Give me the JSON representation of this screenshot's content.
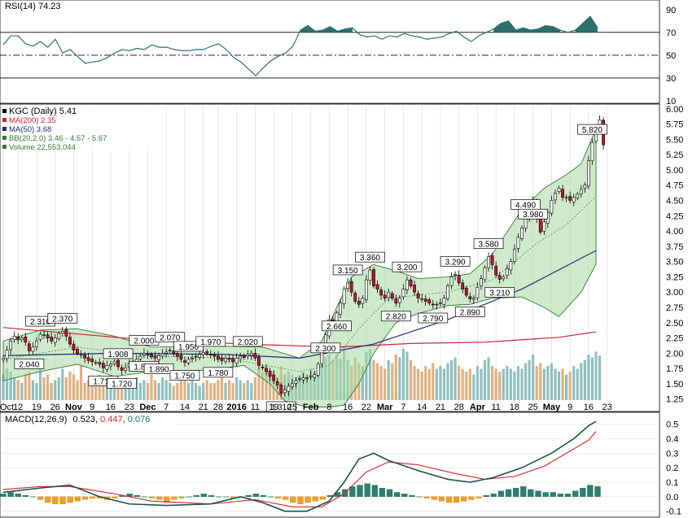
{
  "colors": {
    "up": "#ffffff",
    "down": "#c8102e",
    "candle_edge": "#000000",
    "bb_fill": "#a8d8a0",
    "bb_edge": "#2e7d32",
    "bb_mid": "#4f8a4f",
    "ma200": "#cc2233",
    "ma50": "#1f2d7a",
    "vol_up": "#8fbfbf",
    "vol_down": "#e0b080",
    "rsi_line": "#2e6f6f",
    "rsi_fill": "#2e6f6f",
    "macd": "#1e4f4f",
    "signal": "#d22222",
    "hist": "#2e7f6f",
    "hist_neg": "#f0a020",
    "grid": "#d8d8d8"
  },
  "chart_data": [
    {
      "type": "line",
      "panel": "rsi",
      "title": "RSI(14) 74.23",
      "ylim": [
        10,
        97
      ],
      "y_ticks": [
        90,
        70,
        50,
        30,
        10
      ],
      "levels": [
        70,
        50,
        30
      ],
      "series": [
        {
          "name": "RSI(14)",
          "values": [
            59,
            67,
            67,
            60,
            58,
            62,
            57,
            64,
            52,
            55,
            49,
            43,
            44,
            45,
            48,
            52,
            55,
            54,
            56,
            55,
            59,
            57,
            57,
            55,
            54,
            54,
            55,
            55,
            58,
            60,
            55,
            48,
            44,
            38,
            32,
            39,
            45,
            49,
            52,
            58,
            72,
            76,
            71,
            72,
            75,
            71,
            73,
            74,
            68,
            66,
            67,
            64,
            67,
            66,
            69,
            67,
            66,
            64,
            65,
            66,
            69,
            71,
            66,
            62,
            67,
            70,
            73,
            78,
            80,
            72,
            74,
            72,
            73,
            76,
            75,
            72,
            70,
            72,
            78,
            84,
            74
          ]
        }
      ]
    },
    {
      "type": "candlestick",
      "panel": "price",
      "title": "KGC (Daily) 5.41",
      "ylim": [
        1.1,
        6.05
      ],
      "y_ticks": [
        "6.00",
        "5.75",
        "5.50",
        "5.25",
        "5.00",
        "4.75",
        "4.50",
        "4.25",
        "4.00",
        "3.75",
        "3.50",
        "3.25",
        "3.00",
        "2.75",
        "2.50",
        "2.25",
        "2.00",
        "1.75",
        "1.50",
        "1.25"
      ],
      "x_labels": [
        "Oct",
        "12",
        "19",
        "26",
        "Nov",
        "9",
        "16",
        "23",
        "Dec",
        "7",
        "14",
        "21",
        "28",
        "2016",
        "11",
        "19",
        "25",
        "Feb",
        "8",
        "16",
        "22",
        "Mar",
        "7",
        "14",
        "21",
        "28",
        "Apr",
        "11",
        "18",
        "25",
        "May",
        "9",
        "16",
        "23"
      ],
      "x_label_idx": [
        0,
        4,
        9,
        14,
        19,
        24,
        29,
        34,
        39,
        44,
        49,
        54,
        58,
        63,
        68,
        73,
        78,
        83,
        88,
        93,
        98,
        103,
        108,
        113,
        118,
        123,
        128,
        133,
        138,
        143,
        148,
        153,
        158,
        163
      ],
      "close": [
        1.92,
        2.05,
        2.2,
        2.28,
        2.22,
        2.25,
        2.18,
        2.04,
        2.1,
        2.2,
        2.31,
        2.3,
        2.25,
        2.2,
        2.25,
        2.32,
        2.36,
        2.28,
        2.15,
        2.05,
        2.0,
        1.98,
        1.92,
        1.88,
        1.86,
        1.85,
        1.82,
        1.76,
        1.8,
        1.82,
        1.86,
        1.78,
        1.72,
        1.76,
        1.84,
        1.87,
        1.9,
        1.95,
        2.0,
        1.98,
        1.94,
        1.92,
        1.96,
        1.99,
        2.02,
        2.05,
        2.0,
        1.95,
        1.9,
        1.85,
        1.9,
        1.92,
        1.95,
        1.98,
        2.01,
        2.0,
        1.98,
        1.95,
        1.9,
        1.88,
        1.92,
        1.9,
        1.86,
        1.92,
        1.95,
        1.93,
        1.98,
        2.0,
        1.92,
        1.8,
        1.76,
        1.7,
        1.62,
        1.55,
        1.48,
        1.34,
        1.4,
        1.46,
        1.5,
        1.55,
        1.58,
        1.6,
        1.6,
        1.63,
        1.65,
        1.82,
        2.05,
        2.3,
        2.55,
        2.45,
        2.66,
        2.82,
        3.05,
        3.15,
        3.0,
        2.85,
        2.8,
        2.9,
        3.2,
        3.36,
        3.1,
        3.05,
        2.95,
        2.9,
        3.0,
        2.9,
        2.82,
        2.9,
        3.05,
        3.2,
        3.1,
        3.0,
        2.9,
        2.88,
        2.85,
        2.82,
        2.79,
        2.8,
        2.82,
        2.9,
        3.1,
        3.25,
        3.29,
        3.15,
        3.05,
        2.95,
        2.89,
        2.9,
        3.08,
        3.22,
        3.4,
        3.58,
        3.45,
        3.28,
        3.21,
        3.25,
        3.38,
        3.5,
        3.7,
        3.9,
        4.05,
        4.22,
        4.45,
        4.49,
        4.2,
        3.98,
        4.15,
        4.3,
        4.5,
        4.62,
        4.7,
        4.55,
        4.55,
        4.5,
        4.55,
        4.6,
        4.68,
        4.75,
        5.15,
        5.45,
        5.7,
        5.82,
        5.41
      ],
      "annotations": [
        {
          "label": "2.310",
          "idx": 10,
          "pos": "above"
        },
        {
          "label": "2.040",
          "idx": 7,
          "pos": "below"
        },
        {
          "label": "2.370",
          "idx": 16,
          "pos": "above"
        },
        {
          "label": "1.908",
          "idx": 31,
          "pos": "above"
        },
        {
          "label": "1.710",
          "idx": 27,
          "pos": "below"
        },
        {
          "label": "1.720",
          "idx": 32,
          "pos": "below"
        },
        {
          "label": "2.000",
          "idx": 38,
          "pos": "above"
        },
        {
          "label": "1.870",
          "idx": 38,
          "pos": "below"
        },
        {
          "label": "1.890",
          "idx": 42,
          "pos": "below"
        },
        {
          "label": "2.070",
          "idx": 45,
          "pos": "above"
        },
        {
          "label": "1.950",
          "idx": 50,
          "pos": "above"
        },
        {
          "label": "1.970",
          "idx": 56,
          "pos": "above"
        },
        {
          "label": "1.750",
          "idx": 49,
          "pos": "below"
        },
        {
          "label": "1.780",
          "idx": 58,
          "pos": "below"
        },
        {
          "label": "2.020",
          "idx": 66,
          "pos": "above"
        },
        {
          "label": "1.310",
          "idx": 75,
          "pos": "below"
        },
        {
          "label": "2.300",
          "idx": 87,
          "pos": "below"
        },
        {
          "label": "2.660",
          "idx": 90,
          "pos": "below"
        },
        {
          "label": "3.150",
          "idx": 93,
          "pos": "above"
        },
        {
          "label": "3.360",
          "idx": 99,
          "pos": "above"
        },
        {
          "label": "2.820",
          "idx": 106,
          "pos": "below"
        },
        {
          "label": "3.200",
          "idx": 109,
          "pos": "above"
        },
        {
          "label": "2.790",
          "idx": 116,
          "pos": "below"
        },
        {
          "label": "3.290",
          "idx": 122,
          "pos": "above"
        },
        {
          "label": "2.890",
          "idx": 126,
          "pos": "below"
        },
        {
          "label": "3.580",
          "idx": 131,
          "pos": "above"
        },
        {
          "label": "3.210",
          "idx": 134,
          "pos": "below"
        },
        {
          "label": "4.490",
          "idx": 141,
          "pos": "above"
        },
        {
          "label": "3.980",
          "idx": 143,
          "pos": "below"
        },
        {
          "label": "5.820",
          "idx": 159,
          "pos": "above"
        }
      ],
      "legend": [
        {
          "label": "KGC (Daily) 5.41",
          "color": "#000000"
        },
        {
          "label": "MA(200) 2.35",
          "color": "#cc2233"
        },
        {
          "label": "MA(50) 3.68",
          "color": "#1f2d7a"
        },
        {
          "label": "BB(20,2.0) 3.46 - 4.57 - 5.67",
          "color": "#2e7d32"
        },
        {
          "label": "Volume 22,553,044",
          "color": "#2e7d32"
        }
      ],
      "ma200": [
        [
          0,
          2.42
        ],
        [
          40,
          2.21
        ],
        [
          70,
          2.14
        ],
        [
          90,
          2.1
        ],
        [
          110,
          2.16
        ],
        [
          130,
          2.18
        ],
        [
          150,
          2.26
        ],
        [
          160,
          2.35
        ]
      ],
      "ma50": [
        [
          0,
          1.96
        ],
        [
          30,
          2.0
        ],
        [
          60,
          1.98
        ],
        [
          80,
          1.92
        ],
        [
          100,
          2.15
        ],
        [
          120,
          2.55
        ],
        [
          140,
          3.05
        ],
        [
          160,
          3.68
        ]
      ],
      "bb_upper": [
        [
          0,
          2.2
        ],
        [
          10,
          2.38
        ],
        [
          20,
          2.4
        ],
        [
          30,
          2.28
        ],
        [
          40,
          2.1
        ],
        [
          55,
          2.12
        ],
        [
          70,
          2.1
        ],
        [
          80,
          1.92
        ],
        [
          86,
          2.2
        ],
        [
          90,
          2.75
        ],
        [
          94,
          3.25
        ],
        [
          100,
          3.45
        ],
        [
          106,
          3.35
        ],
        [
          112,
          3.22
        ],
        [
          120,
          3.25
        ],
        [
          126,
          3.3
        ],
        [
          132,
          3.62
        ],
        [
          140,
          4.35
        ],
        [
          146,
          4.7
        ],
        [
          152,
          4.92
        ],
        [
          156,
          5.1
        ],
        [
          160,
          5.67
        ]
      ],
      "bb_lower": [
        [
          0,
          1.55
        ],
        [
          10,
          1.7
        ],
        [
          20,
          1.82
        ],
        [
          30,
          1.62
        ],
        [
          40,
          1.7
        ],
        [
          55,
          1.72
        ],
        [
          65,
          1.8
        ],
        [
          72,
          1.5
        ],
        [
          76,
          1.22
        ],
        [
          82,
          1.12
        ],
        [
          88,
          0.98
        ],
        [
          92,
          1.15
        ],
        [
          96,
          1.5
        ],
        [
          100,
          2.0
        ],
        [
          106,
          2.5
        ],
        [
          112,
          2.65
        ],
        [
          120,
          2.78
        ],
        [
          126,
          2.8
        ],
        [
          132,
          2.9
        ],
        [
          140,
          2.92
        ],
        [
          146,
          2.75
        ],
        [
          150,
          2.6
        ],
        [
          156,
          3.0
        ],
        [
          160,
          3.46
        ]
      ],
      "bb_mid": [
        [
          0,
          1.9
        ],
        [
          20,
          2.1
        ],
        [
          40,
          1.95
        ],
        [
          60,
          1.92
        ],
        [
          80,
          1.7
        ],
        [
          88,
          1.8
        ],
        [
          96,
          2.4
        ],
        [
          104,
          2.9
        ],
        [
          120,
          3.0
        ],
        [
          132,
          3.2
        ],
        [
          144,
          3.8
        ],
        [
          152,
          4.1
        ],
        [
          160,
          4.57
        ]
      ],
      "volume_relative": [
        0.45,
        0.55,
        0.5,
        0.4,
        0.35,
        0.3,
        0.45,
        0.5,
        0.35,
        0.3,
        0.55,
        0.4,
        0.45,
        0.3,
        0.35,
        0.4,
        0.55,
        0.4,
        0.5,
        0.45,
        0.35,
        0.6,
        0.3,
        0.35,
        0.4,
        0.3,
        0.45,
        0.35,
        0.3,
        0.4,
        0.35,
        0.3,
        0.35,
        0.3,
        0.3,
        0.35,
        0.4,
        0.3,
        0.35,
        0.3,
        0.45,
        0.35,
        0.3,
        0.4,
        0.35,
        0.3,
        0.25,
        0.3,
        0.4,
        0.35,
        0.3,
        0.35,
        0.3,
        0.25,
        0.3,
        0.35,
        0.3,
        0.3,
        0.35,
        0.4,
        0.3,
        0.35,
        0.3,
        0.4,
        0.35,
        0.3,
        0.35,
        0.3,
        0.4,
        0.55,
        0.5,
        0.6,
        0.45,
        0.5,
        0.4,
        0.6,
        0.45,
        0.5,
        0.45,
        0.4,
        0.45,
        0.5,
        0.4,
        0.55,
        0.5,
        0.6,
        0.65,
        0.75,
        0.8,
        0.7,
        0.8,
        0.72,
        0.95,
        0.7,
        0.6,
        0.75,
        0.65,
        0.6,
        0.85,
        0.9,
        0.7,
        0.65,
        0.6,
        0.55,
        0.7,
        0.65,
        0.8,
        0.75,
        0.9,
        0.85,
        0.7,
        0.6,
        0.55,
        0.5,
        0.6,
        0.55,
        0.65,
        0.55,
        0.6,
        0.55,
        0.65,
        0.7,
        0.75,
        0.6,
        0.55,
        0.5,
        0.55,
        0.45,
        0.6,
        0.55,
        0.7,
        0.75,
        0.6,
        0.55,
        0.5,
        0.55,
        0.6,
        0.55,
        0.5,
        0.6,
        0.55,
        0.65,
        0.7,
        0.8,
        0.6,
        0.65,
        0.55,
        0.6,
        0.65,
        0.55,
        0.5,
        0.55,
        0.45,
        0.5,
        0.6,
        0.55,
        0.65,
        0.7,
        0.8,
        0.75,
        0.85,
        0.78
      ]
    },
    {
      "type": "line",
      "panel": "macd",
      "title": "MACD(12,26,9) 0.523, 0.447, 0.076",
      "title_parts": {
        "name": "MACD(12,26,9)",
        "macd": "0.523",
        "signal": "0.447",
        "hist": "0.076"
      },
      "ylim": [
        -0.13,
        0.56
      ],
      "y_ticks": [
        "0.5",
        "0.4",
        "0.3",
        "0.2",
        "0.1",
        "0.0",
        "-0.1"
      ],
      "macd": [
        [
          0,
          0.03
        ],
        [
          10,
          0.06
        ],
        [
          18,
          0.08
        ],
        [
          26,
          0.0
        ],
        [
          34,
          -0.05
        ],
        [
          44,
          -0.06
        ],
        [
          56,
          -0.05
        ],
        [
          64,
          0.0
        ],
        [
          70,
          -0.04
        ],
        [
          76,
          -0.1
        ],
        [
          82,
          -0.1
        ],
        [
          88,
          -0.03
        ],
        [
          92,
          0.1
        ],
        [
          96,
          0.26
        ],
        [
          100,
          0.3
        ],
        [
          104,
          0.25
        ],
        [
          112,
          0.18
        ],
        [
          120,
          0.12
        ],
        [
          126,
          0.1
        ],
        [
          132,
          0.13
        ],
        [
          140,
          0.2
        ],
        [
          148,
          0.3
        ],
        [
          154,
          0.4
        ],
        [
          158,
          0.49
        ],
        [
          160,
          0.52
        ]
      ],
      "signal": [
        [
          0,
          0.05
        ],
        [
          10,
          0.07
        ],
        [
          18,
          0.07
        ],
        [
          30,
          0.02
        ],
        [
          40,
          -0.03
        ],
        [
          56,
          -0.05
        ],
        [
          68,
          -0.02
        ],
        [
          78,
          -0.07
        ],
        [
          86,
          -0.07
        ],
        [
          92,
          0.02
        ],
        [
          98,
          0.17
        ],
        [
          104,
          0.24
        ],
        [
          112,
          0.22
        ],
        [
          122,
          0.16
        ],
        [
          130,
          0.12
        ],
        [
          138,
          0.14
        ],
        [
          146,
          0.21
        ],
        [
          152,
          0.3
        ],
        [
          158,
          0.39
        ],
        [
          160,
          0.45
        ]
      ],
      "hist_relative": [
        0.02,
        0.03,
        0.02,
        0.01,
        0.0,
        -0.02,
        -0.04,
        -0.05,
        -0.05,
        -0.04,
        -0.03,
        -0.02,
        -0.01,
        -0.01,
        -0.02,
        -0.01,
        0.01,
        0.02,
        0.01,
        0.0,
        -0.01,
        -0.02,
        -0.04,
        -0.02,
        -0.01,
        0.0,
        0.01,
        0.02,
        0.01,
        0.0,
        0.0,
        -0.01,
        0.0,
        0.01,
        0.02,
        0.01,
        0.0,
        -0.01,
        -0.02,
        -0.04,
        -0.05,
        -0.04,
        -0.03,
        -0.02,
        0.01,
        0.03,
        0.05,
        0.07,
        0.08,
        0.09,
        0.08,
        0.06,
        0.05,
        0.03,
        0.02,
        0.01,
        0.0,
        -0.01,
        -0.02,
        -0.03,
        -0.04,
        -0.04,
        -0.03,
        -0.02,
        -0.01,
        0.01,
        0.02,
        0.04,
        0.05,
        0.06,
        0.07,
        0.05,
        0.04,
        0.03,
        0.03,
        0.02,
        0.02,
        0.04,
        0.06,
        0.08,
        0.07
      ]
    }
  ]
}
